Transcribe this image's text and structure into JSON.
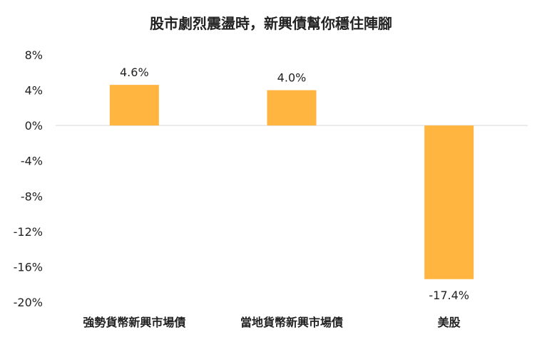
{
  "chart_data": {
    "type": "bar",
    "title": "股市劇烈震盪時，新興債幫你穩住陣腳",
    "categories": [
      "強勢貨幣新興市場債",
      "當地貨幣新興市場債",
      "美股"
    ],
    "values": [
      4.6,
      4.0,
      -17.4
    ],
    "value_labels": [
      "4.6%",
      "4.0%",
      "-17.4%"
    ],
    "ylim": [
      -20,
      8
    ],
    "yticks": [
      8,
      4,
      0,
      -4,
      -8,
      -12,
      -16,
      -20
    ],
    "ytick_labels": [
      "8%",
      "4%",
      "0%",
      "-4%",
      "-8%",
      "-12%",
      "-16%",
      "-20%"
    ],
    "xlabel": "",
    "ylabel": "",
    "grid": false,
    "legend": "none",
    "bar_color": "#FFB53F"
  }
}
